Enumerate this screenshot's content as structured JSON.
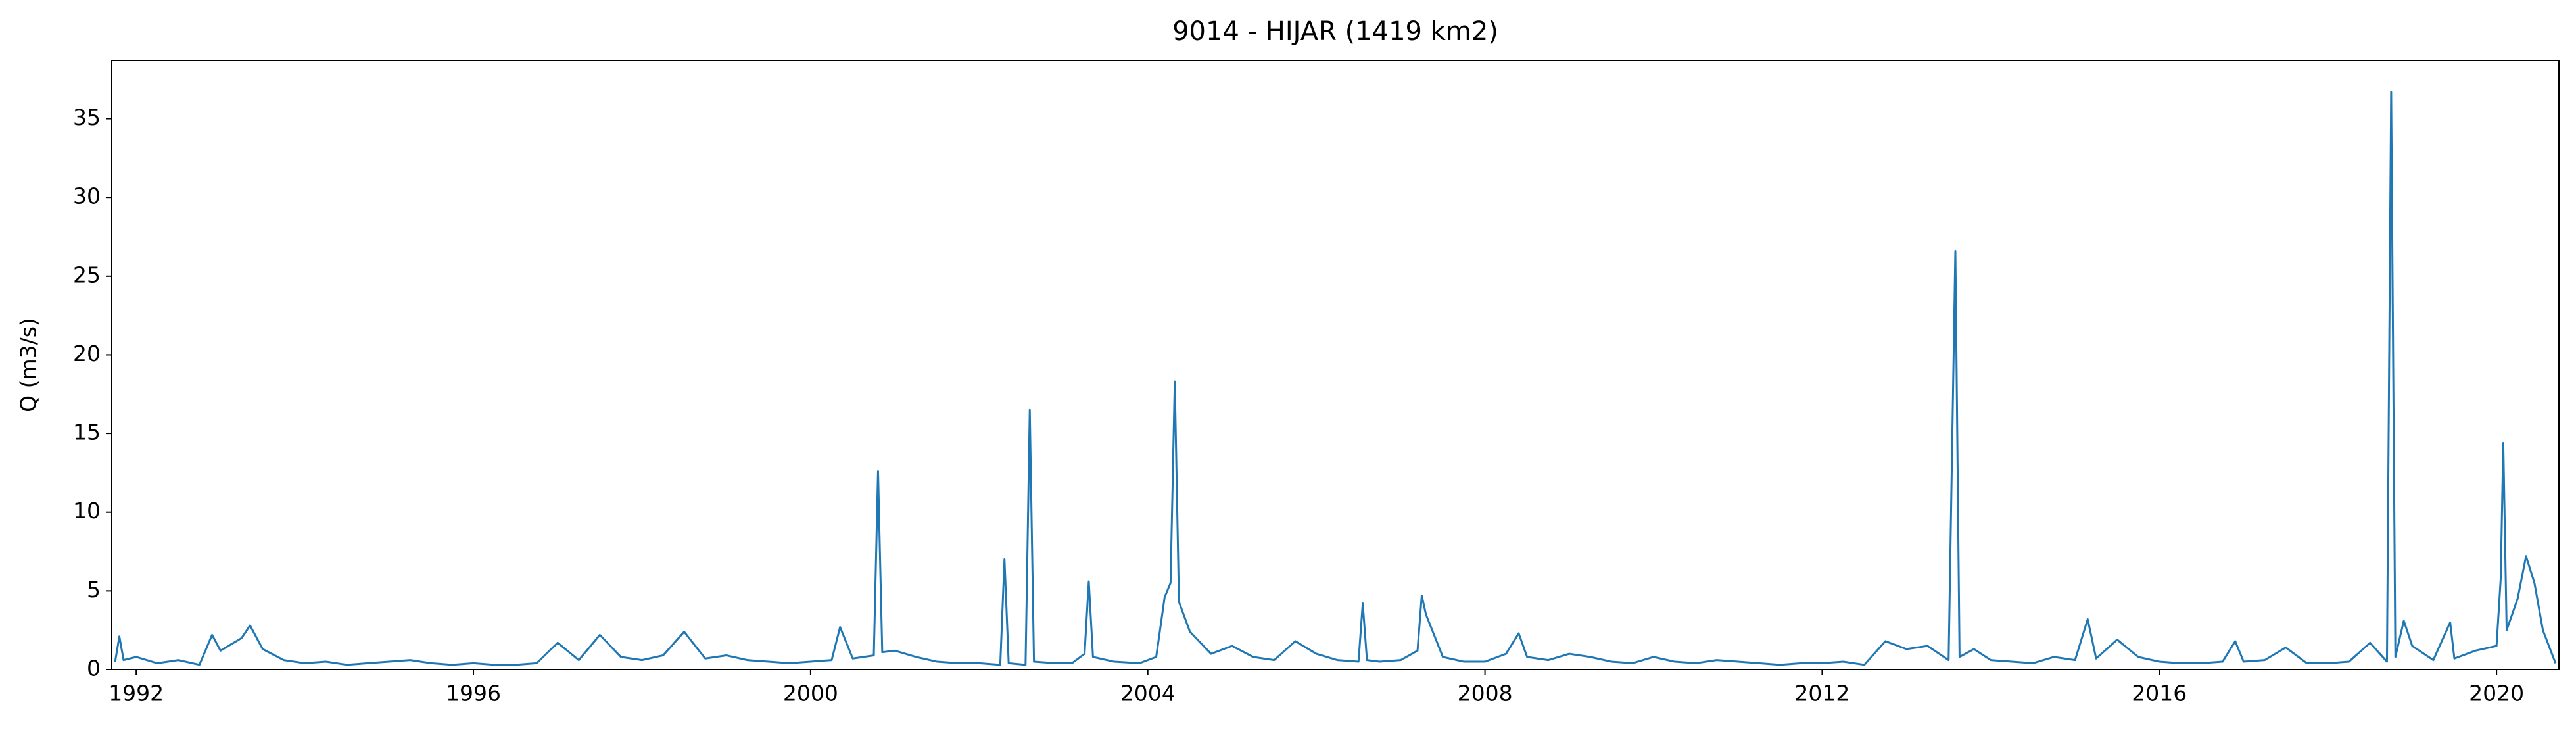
{
  "chart_data": {
    "type": "line",
    "title": "9014 - HIJAR (1419 km2)",
    "y_label": "Q (m3/s)",
    "x": [
      1991.75,
      1991.8,
      1991.85,
      1992.0,
      1992.25,
      1992.5,
      1992.75,
      1992.9,
      1993.0,
      1993.25,
      1993.35,
      1993.5,
      1993.75,
      1994.0,
      1994.25,
      1994.5,
      1994.75,
      1995.0,
      1995.25,
      1995.5,
      1995.75,
      1996.0,
      1996.25,
      1996.5,
      1996.75,
      1997.0,
      1997.25,
      1997.5,
      1997.75,
      1998.0,
      1998.25,
      1998.5,
      1998.75,
      1999.0,
      1999.25,
      1999.5,
      1999.75,
      2000.0,
      2000.25,
      2000.35,
      2000.5,
      2000.75,
      2000.8,
      2000.85,
      2001.0,
      2001.25,
      2001.5,
      2001.75,
      2002.0,
      2002.25,
      2002.3,
      2002.35,
      2002.55,
      2002.6,
      2002.65,
      2002.9,
      2003.1,
      2003.25,
      2003.3,
      2003.35,
      2003.6,
      2003.9,
      2004.1,
      2004.2,
      2004.27,
      2004.32,
      2004.37,
      2004.5,
      2004.75,
      2005.0,
      2005.25,
      2005.5,
      2005.75,
      2006.0,
      2006.25,
      2006.5,
      2006.55,
      2006.6,
      2006.75,
      2007.0,
      2007.2,
      2007.25,
      2007.3,
      2007.5,
      2007.75,
      2008.0,
      2008.25,
      2008.4,
      2008.5,
      2008.75,
      2009.0,
      2009.25,
      2009.5,
      2009.75,
      2010.0,
      2010.25,
      2010.5,
      2010.75,
      2011.0,
      2011.25,
      2011.5,
      2011.75,
      2012.0,
      2012.25,
      2012.5,
      2012.75,
      2013.0,
      2013.25,
      2013.5,
      2013.58,
      2013.63,
      2013.8,
      2014.0,
      2014.25,
      2014.5,
      2014.75,
      2015.0,
      2015.15,
      2015.25,
      2015.5,
      2015.75,
      2016.0,
      2016.25,
      2016.5,
      2016.75,
      2016.9,
      2017.0,
      2017.25,
      2017.5,
      2017.75,
      2018.0,
      2018.25,
      2018.5,
      2018.7,
      2018.75,
      2018.8,
      2018.9,
      2019.0,
      2019.25,
      2019.45,
      2019.5,
      2019.75,
      2020.0,
      2020.05,
      2020.08,
      2020.12,
      2020.25,
      2020.35,
      2020.45,
      2020.55,
      2020.7
    ],
    "series": [
      {
        "name": "Q",
        "color": "#1f77b4",
        "values": [
          0.5,
          2.1,
          0.6,
          0.8,
          0.4,
          0.6,
          0.3,
          2.2,
          1.2,
          2.0,
          2.8,
          1.3,
          0.6,
          0.4,
          0.5,
          0.3,
          0.4,
          0.5,
          0.6,
          0.4,
          0.3,
          0.4,
          0.3,
          0.3,
          0.4,
          1.7,
          0.6,
          2.2,
          0.8,
          0.6,
          0.9,
          2.4,
          0.7,
          0.9,
          0.6,
          0.5,
          0.4,
          0.5,
          0.6,
          2.7,
          0.7,
          0.9,
          12.6,
          1.1,
          1.2,
          0.8,
          0.5,
          0.4,
          0.4,
          0.3,
          7.0,
          0.4,
          0.3,
          16.5,
          0.5,
          0.4,
          0.4,
          1.0,
          5.6,
          0.8,
          0.5,
          0.4,
          0.8,
          4.6,
          5.5,
          18.3,
          4.3,
          2.4,
          1.0,
          1.5,
          0.8,
          0.6,
          1.8,
          1.0,
          0.6,
          0.5,
          4.2,
          0.6,
          0.5,
          0.6,
          1.2,
          4.7,
          3.5,
          0.8,
          0.5,
          0.5,
          1.0,
          2.3,
          0.8,
          0.6,
          1.0,
          0.8,
          0.5,
          0.4,
          0.8,
          0.5,
          0.4,
          0.6,
          0.5,
          0.4,
          0.3,
          0.4,
          0.4,
          0.5,
          0.3,
          1.8,
          1.3,
          1.5,
          0.6,
          26.6,
          0.8,
          1.3,
          0.6,
          0.5,
          0.4,
          0.8,
          0.6,
          3.2,
          0.7,
          1.9,
          0.8,
          0.5,
          0.4,
          0.4,
          0.5,
          1.8,
          0.5,
          0.6,
          1.4,
          0.4,
          0.4,
          0.5,
          1.7,
          0.5,
          36.7,
          0.8,
          3.1,
          1.5,
          0.6,
          3.0,
          0.7,
          1.2,
          1.5,
          5.8,
          14.4,
          2.5,
          4.5,
          7.2,
          5.5,
          2.5,
          0.4
        ]
      }
    ],
    "xlim": [
      1991.71,
      2020.74
    ],
    "xticks": [
      1992,
      1996,
      2000,
      2004,
      2008,
      2012,
      2016,
      2020
    ],
    "ylim": [
      0,
      38.7
    ],
    "yticks": [
      0,
      5,
      10,
      15,
      20,
      25,
      30,
      35
    ]
  }
}
